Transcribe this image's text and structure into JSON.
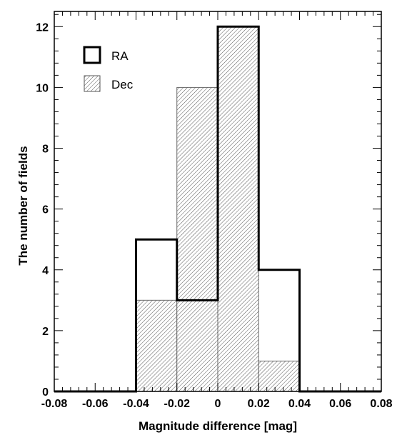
{
  "chart_data": {
    "type": "bar",
    "xlabel": "Magnitude difference [mag]",
    "ylabel": "The number of fields",
    "xlim": [
      -0.08,
      0.08
    ],
    "ylim": [
      0,
      12.5
    ],
    "x_ticks": [
      -0.08,
      -0.06,
      -0.04,
      -0.02,
      0,
      0.02,
      0.04,
      0.06,
      0.08
    ],
    "x_tick_labels": [
      "-0.08",
      "-0.06",
      "-0.04",
      "-0.02",
      "0",
      "0.02",
      "0.04",
      "0.06",
      "0.08"
    ],
    "y_ticks": [
      0,
      2,
      4,
      6,
      8,
      10,
      12
    ],
    "y_tick_labels": [
      "0",
      "2",
      "4",
      "6",
      "8",
      "10",
      "12"
    ],
    "bin_edges": [
      -0.08,
      -0.06,
      -0.04,
      -0.02,
      0,
      0.02,
      0.04,
      0.06,
      0.08
    ],
    "series": [
      {
        "name": "RA",
        "style": "open-step",
        "values": [
          0,
          0,
          5,
          3,
          12,
          4,
          0,
          0
        ]
      },
      {
        "name": "Dec",
        "style": "hatched",
        "values": [
          0,
          0,
          3,
          10,
          12,
          1,
          0,
          0
        ]
      }
    ],
    "legend_position": "top-left",
    "grid": false,
    "colors": {
      "line": "#000000",
      "hatch": "#555555",
      "hatch_background": "#ffffff"
    }
  }
}
